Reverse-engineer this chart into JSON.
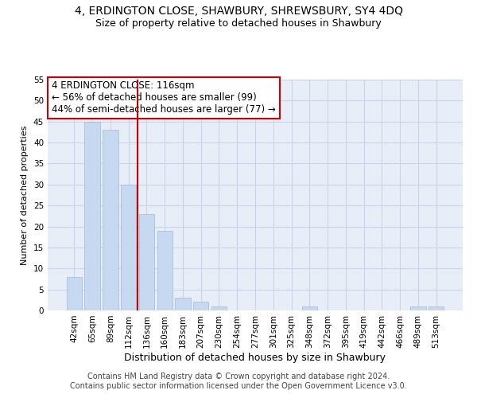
{
  "title": "4, ERDINGTON CLOSE, SHAWBURY, SHREWSBURY, SY4 4DQ",
  "subtitle": "Size of property relative to detached houses in Shawbury",
  "xlabel": "Distribution of detached houses by size in Shawbury",
  "ylabel": "Number of detached properties",
  "categories": [
    "42sqm",
    "65sqm",
    "89sqm",
    "112sqm",
    "136sqm",
    "160sqm",
    "183sqm",
    "207sqm",
    "230sqm",
    "254sqm",
    "277sqm",
    "301sqm",
    "325sqm",
    "348sqm",
    "372sqm",
    "395sqm",
    "419sqm",
    "442sqm",
    "466sqm",
    "489sqm",
    "513sqm"
  ],
  "values": [
    8,
    45,
    43,
    30,
    23,
    19,
    3,
    2,
    1,
    0,
    0,
    0,
    0,
    1,
    0,
    0,
    0,
    0,
    0,
    1,
    1
  ],
  "bar_color": "#c6d9f0",
  "bar_edge_color": "#a0b8d8",
  "vline_x": 3.5,
  "vline_color": "#cc0000",
  "annotation_text": "4 ERDINGTON CLOSE: 116sqm\n← 56% of detached houses are smaller (99)\n44% of semi-detached houses are larger (77) →",
  "annotation_box_color": "#ffffff",
  "annotation_box_edge": "#cc0000",
  "ylim": [
    0,
    55
  ],
  "yticks": [
    0,
    5,
    10,
    15,
    20,
    25,
    30,
    35,
    40,
    45,
    50,
    55
  ],
  "grid_color": "#c8d4e8",
  "footer_line1": "Contains HM Land Registry data © Crown copyright and database right 2024.",
  "footer_line2": "Contains public sector information licensed under the Open Government Licence v3.0.",
  "title_fontsize": 10,
  "subtitle_fontsize": 9,
  "xlabel_fontsize": 9,
  "ylabel_fontsize": 8,
  "tick_fontsize": 7.5,
  "annotation_fontsize": 8.5,
  "footer_fontsize": 7,
  "bg_color": "#e8eef8"
}
